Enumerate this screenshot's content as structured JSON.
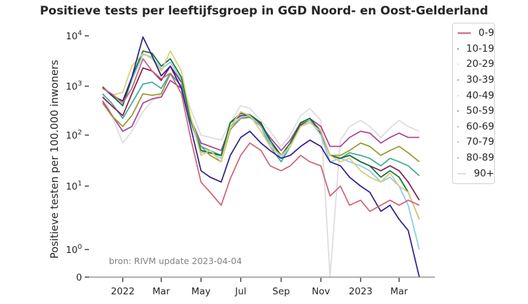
{
  "chart_data": {
    "type": "line",
    "title": "Positieve tests per leeftijfsgroep in GGD Noord- en Oost-Gelderland",
    "xlabel": "",
    "ylabel": "Positieve testen per 100.000 inwoners",
    "yscale": "symlog",
    "ylim": [
      0,
      10000
    ],
    "y_ticks": [
      {
        "value": 0,
        "label": "0"
      },
      {
        "value": 1,
        "label": "10^0"
      },
      {
        "value": 10,
        "label": "10^1"
      },
      {
        "value": 100,
        "label": "10^2"
      },
      {
        "value": 1000,
        "label": "10^3"
      },
      {
        "value": 10000,
        "label": "10^4"
      }
    ],
    "x_ticks": [
      {
        "date": "2022-01-01",
        "label": "2022"
      },
      {
        "date": "2022-03-01",
        "label": "Mar"
      },
      {
        "date": "2022-05-01",
        "label": "May"
      },
      {
        "date": "2022-07-01",
        "label": "Jul"
      },
      {
        "date": "2022-09-01",
        "label": "Sep"
      },
      {
        "date": "2022-11-01",
        "label": "Nov"
      },
      {
        "date": "2023-01-01",
        "label": "2023"
      },
      {
        "date": "2023-03-01",
        "label": "Mar"
      }
    ],
    "xlim": [
      "2021-11-09",
      "2023-04-25"
    ],
    "annotation": "bron: RIVM update 2023-04-04",
    "legend_position": "outside-right",
    "x": [
      "2021-12-01",
      "2021-12-15",
      "2022-01-01",
      "2022-01-15",
      "2022-02-01",
      "2022-02-15",
      "2022-03-01",
      "2022-03-15",
      "2022-04-01",
      "2022-04-15",
      "2022-05-01",
      "2022-05-15",
      "2022-06-01",
      "2022-06-15",
      "2022-07-01",
      "2022-07-15",
      "2022-08-01",
      "2022-08-15",
      "2022-09-01",
      "2022-09-15",
      "2022-10-01",
      "2022-10-15",
      "2022-11-01",
      "2022-11-15",
      "2022-12-01",
      "2022-12-15",
      "2023-01-01",
      "2023-01-15",
      "2023-02-01",
      "2023-02-15",
      "2023-03-01",
      "2023-03-15",
      "2023-04-01"
    ],
    "series": [
      {
        "name": "0-9",
        "color": "#cc6677",
        "values": [
          900,
          700,
          450,
          900,
          3500,
          2000,
          1400,
          1800,
          700,
          90,
          12,
          8,
          5,
          14,
          40,
          70,
          50,
          25,
          20,
          25,
          40,
          30,
          25,
          7,
          10,
          5,
          6,
          4,
          5,
          6,
          5,
          6,
          5
        ]
      },
      {
        "name": "10-19",
        "color": "#332288",
        "values": [
          950,
          650,
          500,
          1500,
          9500,
          4000,
          1600,
          2500,
          900,
          150,
          20,
          15,
          12,
          40,
          90,
          120,
          70,
          50,
          35,
          40,
          60,
          80,
          60,
          30,
          25,
          15,
          10,
          8,
          4,
          5,
          3,
          2,
          0
        ]
      },
      {
        "name": "20-29",
        "color": "#ddcc77",
        "values": [
          1000,
          650,
          750,
          2500,
          4500,
          3500,
          2000,
          5000,
          2000,
          250,
          40,
          50,
          30,
          150,
          300,
          250,
          120,
          60,
          40,
          60,
          150,
          180,
          120,
          40,
          30,
          35,
          20,
          15,
          12,
          18,
          10,
          8,
          3
        ]
      },
      {
        "name": "30-39",
        "color": "#117733",
        "values": [
          1000,
          650,
          400,
          1500,
          5000,
          4500,
          2500,
          3500,
          1500,
          200,
          50,
          45,
          40,
          180,
          280,
          260,
          180,
          80,
          40,
          70,
          180,
          220,
          120,
          40,
          35,
          40,
          30,
          25,
          15,
          20,
          15,
          8,
          3
        ]
      },
      {
        "name": "40-49",
        "color": "#88ccee",
        "values": [
          950,
          650,
          400,
          1300,
          4300,
          3800,
          2200,
          3000,
          1300,
          200,
          45,
          50,
          35,
          150,
          230,
          250,
          150,
          70,
          35,
          60,
          150,
          200,
          100,
          30,
          35,
          30,
          25,
          20,
          12,
          15,
          10,
          5,
          1
        ]
      },
      {
        "name": "50-59",
        "color": "#882255",
        "values": [
          600,
          400,
          250,
          700,
          2300,
          2000,
          1300,
          2500,
          1200,
          200,
          50,
          45,
          40,
          180,
          250,
          260,
          170,
          70,
          40,
          60,
          160,
          200,
          110,
          40,
          35,
          40,
          30,
          25,
          20,
          25,
          20,
          12,
          6
        ]
      },
      {
        "name": "60-69",
        "color": "#44aa99",
        "values": [
          700,
          450,
          220,
          450,
          1100,
          1200,
          900,
          1800,
          1000,
          220,
          60,
          50,
          40,
          150,
          230,
          240,
          150,
          60,
          30,
          60,
          180,
          220,
          110,
          40,
          35,
          45,
          40,
          35,
          25,
          35,
          30,
          25,
          16
        ]
      },
      {
        "name": "70-79",
        "color": "#999933",
        "values": [
          450,
          250,
          150,
          250,
          700,
          650,
          700,
          1800,
          1000,
          230,
          60,
          40,
          30,
          130,
          220,
          230,
          150,
          70,
          40,
          60,
          170,
          200,
          120,
          40,
          40,
          50,
          70,
          60,
          40,
          50,
          60,
          45,
          30
        ]
      },
      {
        "name": "80-89",
        "color": "#aa4499",
        "values": [
          500,
          260,
          120,
          150,
          450,
          550,
          600,
          1300,
          900,
          220,
          70,
          60,
          50,
          150,
          220,
          230,
          160,
          90,
          50,
          80,
          180,
          220,
          150,
          60,
          60,
          90,
          120,
          110,
          70,
          90,
          110,
          90,
          90
        ]
      },
      {
        "name": "90+",
        "color": "#dddddd",
        "values": [
          700,
          250,
          70,
          120,
          300,
          500,
          700,
          1700,
          1200,
          350,
          100,
          90,
          80,
          180,
          400,
          350,
          200,
          120,
          60,
          100,
          250,
          350,
          200,
          0,
          80,
          150,
          200,
          150,
          90,
          140,
          200,
          150,
          120
        ]
      }
    ]
  }
}
